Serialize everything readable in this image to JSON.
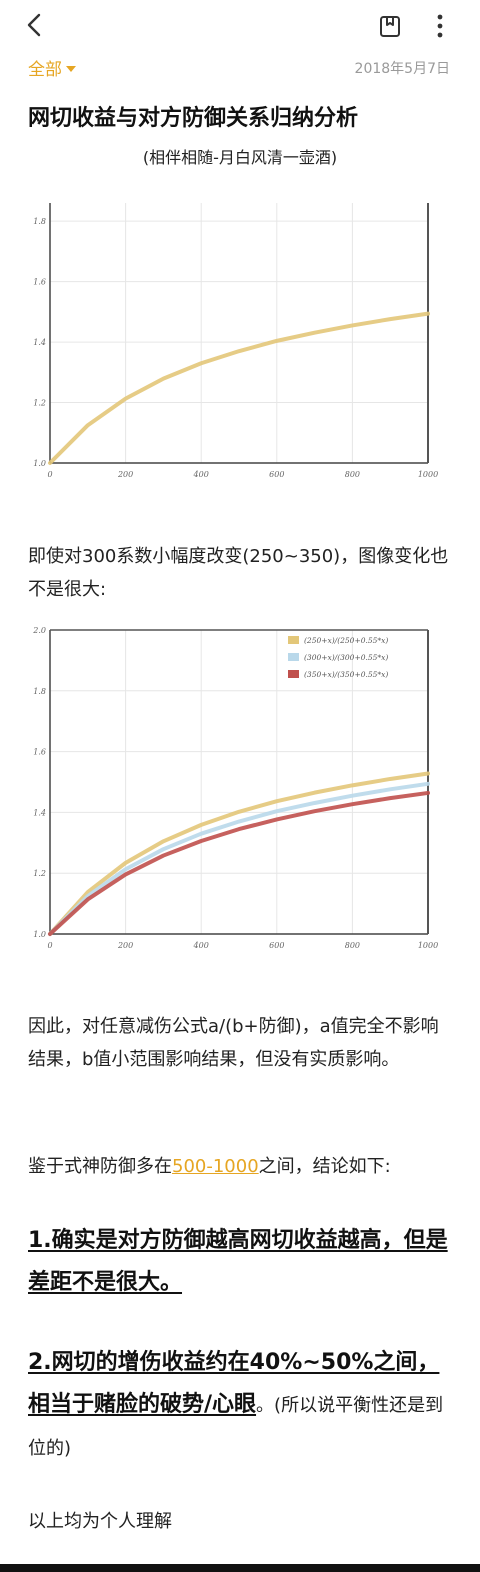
{
  "header": {
    "back_icon": "chevron-left-icon",
    "save_icon": "bookmark-note-icon",
    "more_icon": "more-vertical-icon",
    "folder_label": "全部",
    "date": "2018年5月7日"
  },
  "note": {
    "title": "网切收益与对方防御关系归纳分析",
    "subtitle": "(相伴相随-月白风清一壶酒)",
    "para1": "即使对300系数小幅度改变(250~350)，图像变化也不是很大:",
    "para2": "因此，对任意减伤公式a/(b+防御)，a值完全不影响结果，b值小范围影响结果，但没有实质影响。",
    "para3_before": "鉴于式神防御多在",
    "para3_link": "500-1000",
    "para3_after": "之间，结论如下:",
    "conclusion1": "1.确实是对方防御越高网切收益越高，但是差距不是很大。",
    "conclusion2": "2.网切的增伤收益约在40%~50%之间，相当于赌脸的破势/心眼",
    "conclusion2_tail": "。(所以说平衡性还是到位的)",
    "para4": "以上均为个人理解"
  },
  "chart_data": [
    {
      "type": "line",
      "x": [
        0,
        100,
        200,
        300,
        400,
        500,
        600,
        700,
        800,
        900,
        1000
      ],
      "series": [
        {
          "values": [
            1.0,
            1.125,
            1.213,
            1.279,
            1.33,
            1.37,
            1.404,
            1.431,
            1.455,
            1.476,
            1.494
          ],
          "color": "#e3c779"
        }
      ],
      "xticks": [
        "0",
        "200",
        "400",
        "600",
        "800",
        "1000"
      ],
      "yticks": [
        "1.0",
        "1.2",
        "1.4",
        "1.6",
        "1.8"
      ],
      "xlim": [
        0,
        1000
      ],
      "ylim": [
        1.0,
        1.86
      ],
      "grid": true
    },
    {
      "type": "line",
      "x": [
        0,
        100,
        200,
        300,
        400,
        500,
        600,
        700,
        800,
        900,
        1000
      ],
      "series": [
        {
          "name": "(250+x)/(250+0.55*x)",
          "values": [
            1.0,
            1.138,
            1.234,
            1.305,
            1.359,
            1.402,
            1.437,
            1.465,
            1.489,
            1.51,
            1.528
          ],
          "color": "#e3c779"
        },
        {
          "name": "(300+x)/(300+0.55*x)",
          "values": [
            1.0,
            1.125,
            1.213,
            1.279,
            1.33,
            1.37,
            1.404,
            1.431,
            1.455,
            1.476,
            1.494
          ],
          "color": "#b9d8ea"
        },
        {
          "name": "(350+x)/(350+0.55*x)",
          "values": [
            1.0,
            1.114,
            1.196,
            1.258,
            1.306,
            1.345,
            1.377,
            1.404,
            1.427,
            1.447,
            1.464
          ],
          "color": "#c0504d"
        }
      ],
      "xticks": [
        "0",
        "200",
        "400",
        "600",
        "800",
        "1000"
      ],
      "yticks": [
        "1.0",
        "1.2",
        "1.4",
        "1.6",
        "1.8",
        "2.0"
      ],
      "xlim": [
        0,
        1000
      ],
      "ylim": [
        1.0,
        2.0
      ],
      "grid": true,
      "legend": "top-right"
    }
  ]
}
